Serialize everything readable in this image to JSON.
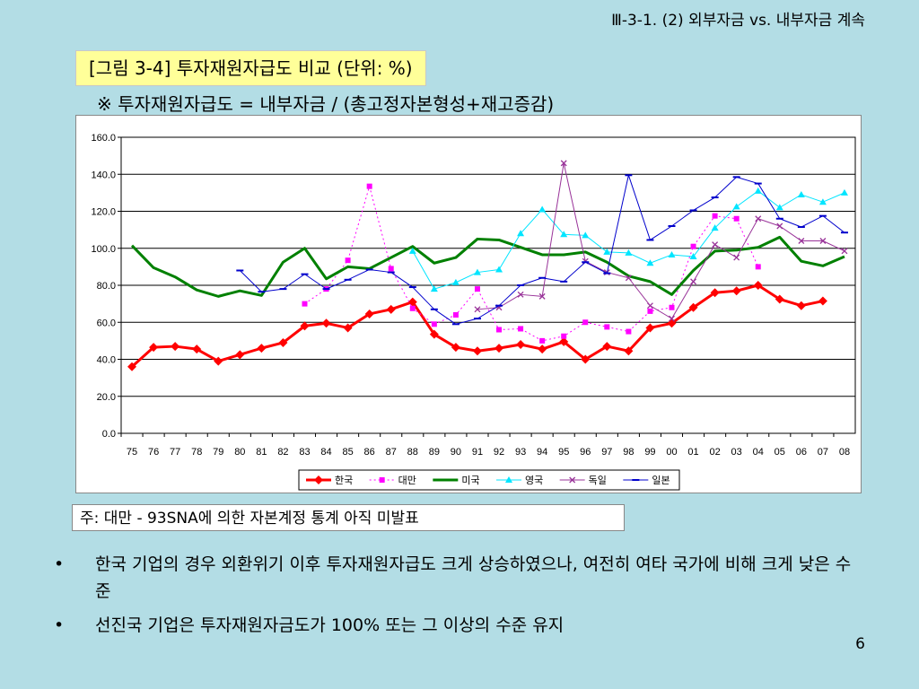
{
  "header": {
    "section_title": "Ⅲ-3-1. (2) 외부자금 vs. 내부자금 계속"
  },
  "figure": {
    "title": "[그림 3-4] 투자재원자급도 비교 (단위: %)",
    "formula": "※ 투자재원자급도 = 내부자금 / (총고정자본형성+재고증감)"
  },
  "chart_data": {
    "type": "line",
    "title": "",
    "xlabel": "",
    "ylabel": "",
    "ylim": [
      0,
      160
    ],
    "yticks": [
      "160.0",
      "140.0",
      "120.0",
      "100.0",
      "80.0",
      "60.0",
      "40.0",
      "20.0",
      "0.0"
    ],
    "grid": true,
    "legend_position": "bottom",
    "x": [
      "75",
      "76",
      "77",
      "78",
      "79",
      "80",
      "81",
      "82",
      "83",
      "84",
      "85",
      "86",
      "87",
      "88",
      "89",
      "90",
      "91",
      "92",
      "93",
      "94",
      "95",
      "96",
      "97",
      "98",
      "99",
      "00",
      "01",
      "02",
      "03",
      "04",
      "05",
      "06",
      "07",
      "08"
    ],
    "series": [
      {
        "name": "한국",
        "color": "#ff0000",
        "style": "solid",
        "width": 3,
        "marker": "diamond",
        "values": [
          36,
          46.5,
          47,
          45.5,
          39,
          42.5,
          46,
          49,
          58,
          59.5,
          57,
          64.5,
          67,
          71,
          53.5,
          46.5,
          44.5,
          46,
          48,
          45.5,
          49.5,
          40,
          47,
          44.5,
          57,
          59.5,
          68,
          76,
          77,
          80,
          72.5,
          69,
          71.5,
          null
        ]
      },
      {
        "name": "대만",
        "color": "#ff00ff",
        "style": "dotted",
        "width": 1,
        "marker": "square",
        "values": [
          null,
          null,
          null,
          null,
          null,
          null,
          null,
          null,
          70,
          78,
          93.5,
          133.5,
          89,
          67.5,
          59,
          64,
          78,
          56,
          56.5,
          50,
          52.5,
          60,
          57.5,
          55,
          66,
          68,
          101,
          117.5,
          116,
          90,
          null,
          null,
          null,
          null
        ]
      },
      {
        "name": "미국",
        "color": "#008000",
        "style": "solid",
        "width": 3,
        "marker": "none",
        "values": [
          101.5,
          89.5,
          84.5,
          77.5,
          74,
          77,
          74.5,
          92.5,
          100,
          83.5,
          90,
          89,
          95,
          101,
          92,
          95,
          105,
          104.5,
          100.5,
          96.5,
          96.5,
          98,
          92.5,
          85,
          82,
          75,
          88,
          98.5,
          99,
          100.5,
          106,
          93,
          90.5,
          95.5
        ]
      },
      {
        "name": "영국",
        "color": "#00e5ff",
        "style": "solid",
        "width": 1,
        "marker": "triangle",
        "values": [
          null,
          null,
          null,
          null,
          null,
          null,
          null,
          null,
          null,
          null,
          null,
          null,
          null,
          98.5,
          78,
          81.5,
          87,
          88.5,
          108,
          121,
          107.5,
          107,
          98,
          97.5,
          92,
          96.5,
          95.5,
          111,
          122.5,
          131,
          122,
          129,
          125,
          130
        ]
      },
      {
        "name": "독일",
        "color": "#993399",
        "style": "solid",
        "width": 1,
        "marker": "x",
        "values": [
          null,
          null,
          null,
          null,
          null,
          null,
          null,
          null,
          null,
          null,
          null,
          null,
          null,
          null,
          null,
          null,
          67,
          68,
          75,
          74,
          146,
          93,
          87,
          84,
          69,
          62,
          82,
          102,
          95,
          116,
          112,
          104,
          104,
          98.5
        ]
      },
      {
        "name": "일본",
        "color": "#0000cc",
        "style": "solid",
        "width": 1,
        "marker": "dash",
        "values": [
          null,
          null,
          null,
          null,
          null,
          88,
          76.5,
          78,
          86,
          78,
          83,
          88.5,
          87,
          79,
          67,
          59,
          62,
          69,
          80,
          84,
          82,
          92.5,
          86.5,
          139.5,
          104.5,
          112,
          120.5,
          127.5,
          138.5,
          135,
          116,
          111.5,
          117.5,
          108.5
        ]
      }
    ]
  },
  "note": "주: 대만 - 93SNA에 의한 자본계정 통계 아직 미발표",
  "bullets": [
    {
      "mark": "•",
      "text": "한국 기업의 경우 외환위기 이후 투자재원자급도 크게 상승하였으나, 여전히 여타 국가에 비해 크게 낮은 수준"
    },
    {
      "mark": "•",
      "text": "선진국 기업은 투자재원자금도가 100% 또는 그 이상의 수준 유지"
    }
  ],
  "page_number": "6"
}
